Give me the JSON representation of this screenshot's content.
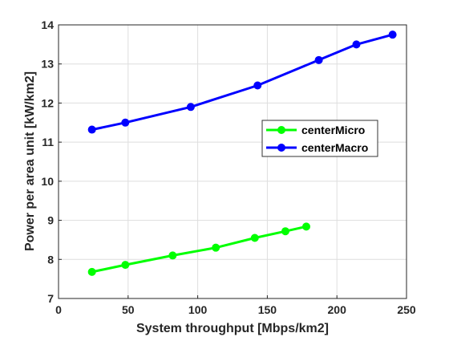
{
  "chart_data": {
    "type": "line",
    "xlabel": "System throughput [Mbps/km2]",
    "ylabel": "Power per area unit [kW/km2]",
    "xlim": [
      0,
      250
    ],
    "ylim": [
      7,
      14
    ],
    "xticks": [
      0,
      50,
      100,
      150,
      200,
      250
    ],
    "yticks": [
      7,
      8,
      9,
      10,
      11,
      12,
      13,
      14
    ],
    "grid": true,
    "legend_position": "right-middle",
    "series": [
      {
        "name": "centerMicro",
        "color": "#00ff00",
        "x": [
          24,
          48,
          82,
          113,
          141,
          163,
          178
        ],
        "y": [
          7.68,
          7.86,
          8.1,
          8.3,
          8.55,
          8.72,
          8.84
        ]
      },
      {
        "name": "centerMacro",
        "color": "#0000ff",
        "x": [
          24,
          48,
          95,
          143,
          187,
          214,
          240
        ],
        "y": [
          11.32,
          11.5,
          11.9,
          12.45,
          13.1,
          13.5,
          13.75
        ]
      }
    ]
  }
}
